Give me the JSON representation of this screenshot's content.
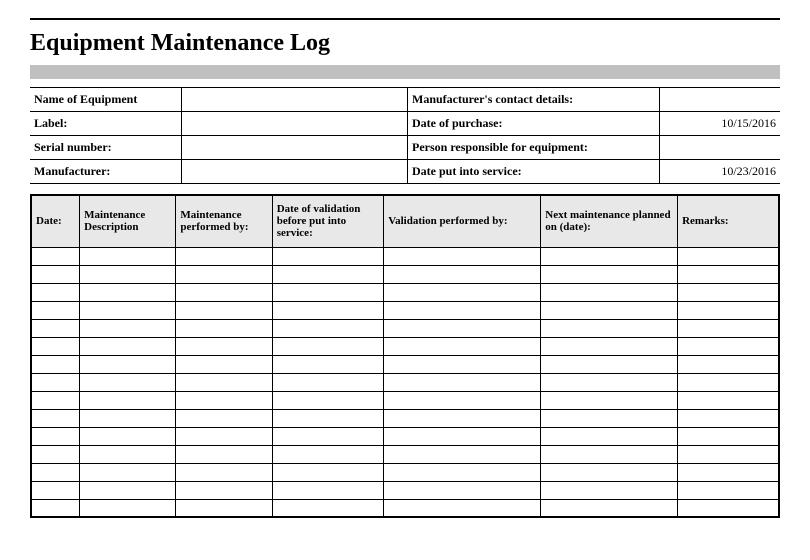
{
  "title": "Equipment Maintenance Log",
  "colors": {
    "gray_bar": "#c0c0c0",
    "header_bg": "#e8e8e8",
    "border": "#000000",
    "background": "#ffffff"
  },
  "header_fields": {
    "left": [
      {
        "label": "Name of Equipment",
        "value": ""
      },
      {
        "label": "Label:",
        "value": ""
      },
      {
        "label": "Serial number:",
        "value": ""
      },
      {
        "label": "Manufacturer:",
        "value": ""
      }
    ],
    "right": [
      {
        "label": "Manufacturer's contact details:",
        "value": ""
      },
      {
        "label": "Date of purchase:",
        "value": "10/15/2016"
      },
      {
        "label": "Person responsible for equipment:",
        "value": ""
      },
      {
        "label": "Date put into service:",
        "value": "10/23/2016"
      }
    ]
  },
  "log": {
    "columns": [
      "Date:",
      "Maintenance Description",
      "Maintenance performed by:",
      "Date of validation before put into service:",
      "Validation performed by:",
      "Next maintenance planned on (date):",
      "Remarks:"
    ],
    "row_count": 15
  }
}
